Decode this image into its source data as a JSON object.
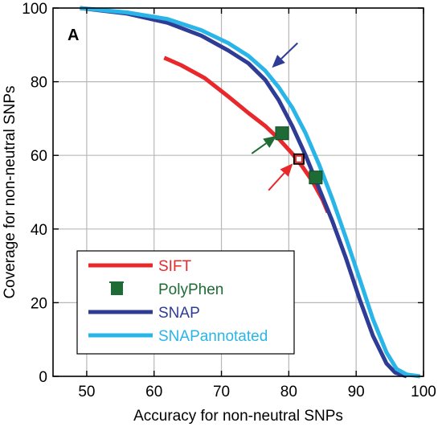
{
  "chart_data": {
    "type": "line",
    "panel_label": "A",
    "xlabel": "Accuracy for non-neutral SNPs",
    "ylabel": "Coverage for non-neutral SNPs",
    "xlim": [
      45,
      100
    ],
    "ylim": [
      0,
      100
    ],
    "x_ticks": [
      50,
      60,
      70,
      80,
      90,
      100
    ],
    "y_ticks": [
      0,
      20,
      40,
      60,
      80,
      100
    ],
    "grid": true,
    "legend_position": "bottom-left",
    "series": [
      {
        "name": "SIFT",
        "kind": "line",
        "color": "#e8282b",
        "points": [
          [
            61.5,
            86.5
          ],
          [
            64,
            84.5
          ],
          [
            67.5,
            81
          ],
          [
            71,
            76
          ],
          [
            74,
            71.5
          ],
          [
            76.5,
            68
          ],
          [
            78.5,
            64.5
          ],
          [
            80.5,
            60.5
          ],
          [
            82,
            57
          ],
          [
            83.5,
            53
          ],
          [
            85,
            48
          ],
          [
            85.8,
            44.5
          ]
        ]
      },
      {
        "name": "PolyPhen",
        "kind": "marker",
        "color": "#1e6b35",
        "points": [
          [
            79,
            66
          ],
          [
            84,
            54
          ]
        ]
      },
      {
        "name": "SNAP",
        "kind": "line",
        "color": "#2e3c96",
        "points": [
          [
            49,
            100
          ],
          [
            56,
            98.5
          ],
          [
            62,
            96
          ],
          [
            67,
            92.5
          ],
          [
            71,
            88.5
          ],
          [
            74,
            85
          ],
          [
            76.5,
            80.5
          ],
          [
            78.5,
            75
          ],
          [
            80.5,
            68
          ],
          [
            82.5,
            60
          ],
          [
            84.5,
            51
          ],
          [
            86.5,
            42
          ],
          [
            88.5,
            32
          ],
          [
            90.5,
            21
          ],
          [
            92.5,
            11
          ],
          [
            94.5,
            3.5
          ],
          [
            95.8,
            1
          ],
          [
            97.5,
            0
          ]
        ]
      },
      {
        "name": "SNAPannotated",
        "kind": "line",
        "color": "#2ab5e8",
        "points": [
          [
            49,
            100
          ],
          [
            56,
            98.8
          ],
          [
            62,
            97
          ],
          [
            67,
            94
          ],
          [
            71,
            90.5
          ],
          [
            74,
            87
          ],
          [
            76.5,
            83
          ],
          [
            78.5,
            78.5
          ],
          [
            80.5,
            73
          ],
          [
            82.5,
            66
          ],
          [
            84.5,
            57.5
          ],
          [
            86.5,
            48
          ],
          [
            88.5,
            37.5
          ],
          [
            90.5,
            26.5
          ],
          [
            92.5,
            15.5
          ],
          [
            94.5,
            6.5
          ],
          [
            96,
            2
          ],
          [
            97.5,
            0.5
          ],
          [
            99.5,
            0
          ]
        ]
      }
    ],
    "highlight_point": {
      "x": 81.5,
      "y": 59,
      "color": "#e8282b"
    },
    "arrows": [
      {
        "color": "#2e3c96",
        "from": [
          81.3,
          90.5
        ],
        "to": [
          77.5,
          83.8
        ]
      },
      {
        "color": "#1e6b35",
        "from": [
          74.5,
          60.5
        ],
        "to": [
          78.2,
          65.3
        ]
      },
      {
        "color": "#e8282b",
        "from": [
          77,
          50.5
        ],
        "to": [
          80.6,
          57.8
        ]
      }
    ]
  }
}
